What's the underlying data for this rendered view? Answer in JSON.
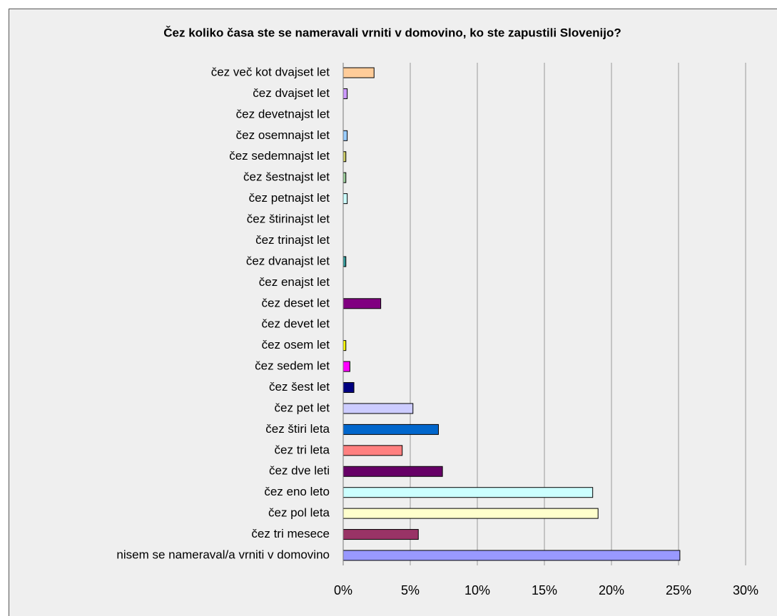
{
  "chart_data": {
    "type": "bar",
    "orientation": "horizontal",
    "title": "Čez koliko časa ste se nameravali vrniti v domovino, ko ste zapustili Slovenijo?",
    "categories": [
      "čez več kot dvajset let",
      "čez dvajset let",
      "čez devetnajst let",
      "čez osemnajst let",
      "čez sedemnajst let",
      "čez šestnajst let",
      "čez petnajst let",
      "čez štirinajst let",
      "čez trinajst let",
      "čez dvanajst let",
      "čez enajst let",
      "čez deset let",
      "čez devet let",
      "čez osem let",
      "čez sedem let",
      "čez šest let",
      "čez pet let",
      "čez štiri leta",
      "čez tri leta",
      "čez dve leti",
      "čez eno leto",
      "čez pol leta",
      "čez tri mesece",
      "nisem se nameraval/a vrniti v domovino"
    ],
    "values": [
      2.3,
      0.3,
      0,
      0.3,
      0.2,
      0.2,
      0.3,
      0,
      0,
      0.2,
      0,
      2.8,
      0,
      0.2,
      0.5,
      0.8,
      5.2,
      7.1,
      4.4,
      7.4,
      18.6,
      19.0,
      5.6,
      25.1
    ],
    "colors": [
      "#ffcc99",
      "#cc99ff",
      "#c0c0c0",
      "#99ccff",
      "#cccc66",
      "#99cc99",
      "#ccffff",
      "#33cccc",
      "#ff9900",
      "#339999",
      "#00ccff",
      "#800080",
      "#ffcc00",
      "#ffff00",
      "#ff00ff",
      "#000080",
      "#ccccff",
      "#0066cc",
      "#ff8080",
      "#660066",
      "#ccffff",
      "#ffffcc",
      "#993366",
      "#9999ff"
    ],
    "xlim": [
      0,
      30
    ],
    "xticks": [
      {
        "value": 0,
        "label": "0%"
      },
      {
        "value": 5,
        "label": "5%"
      },
      {
        "value": 10,
        "label": "10%"
      },
      {
        "value": 15,
        "label": "15%"
      },
      {
        "value": 20,
        "label": "20%"
      },
      {
        "value": 25,
        "label": "25%"
      },
      {
        "value": 30,
        "label": "30%"
      }
    ],
    "grid": true
  }
}
